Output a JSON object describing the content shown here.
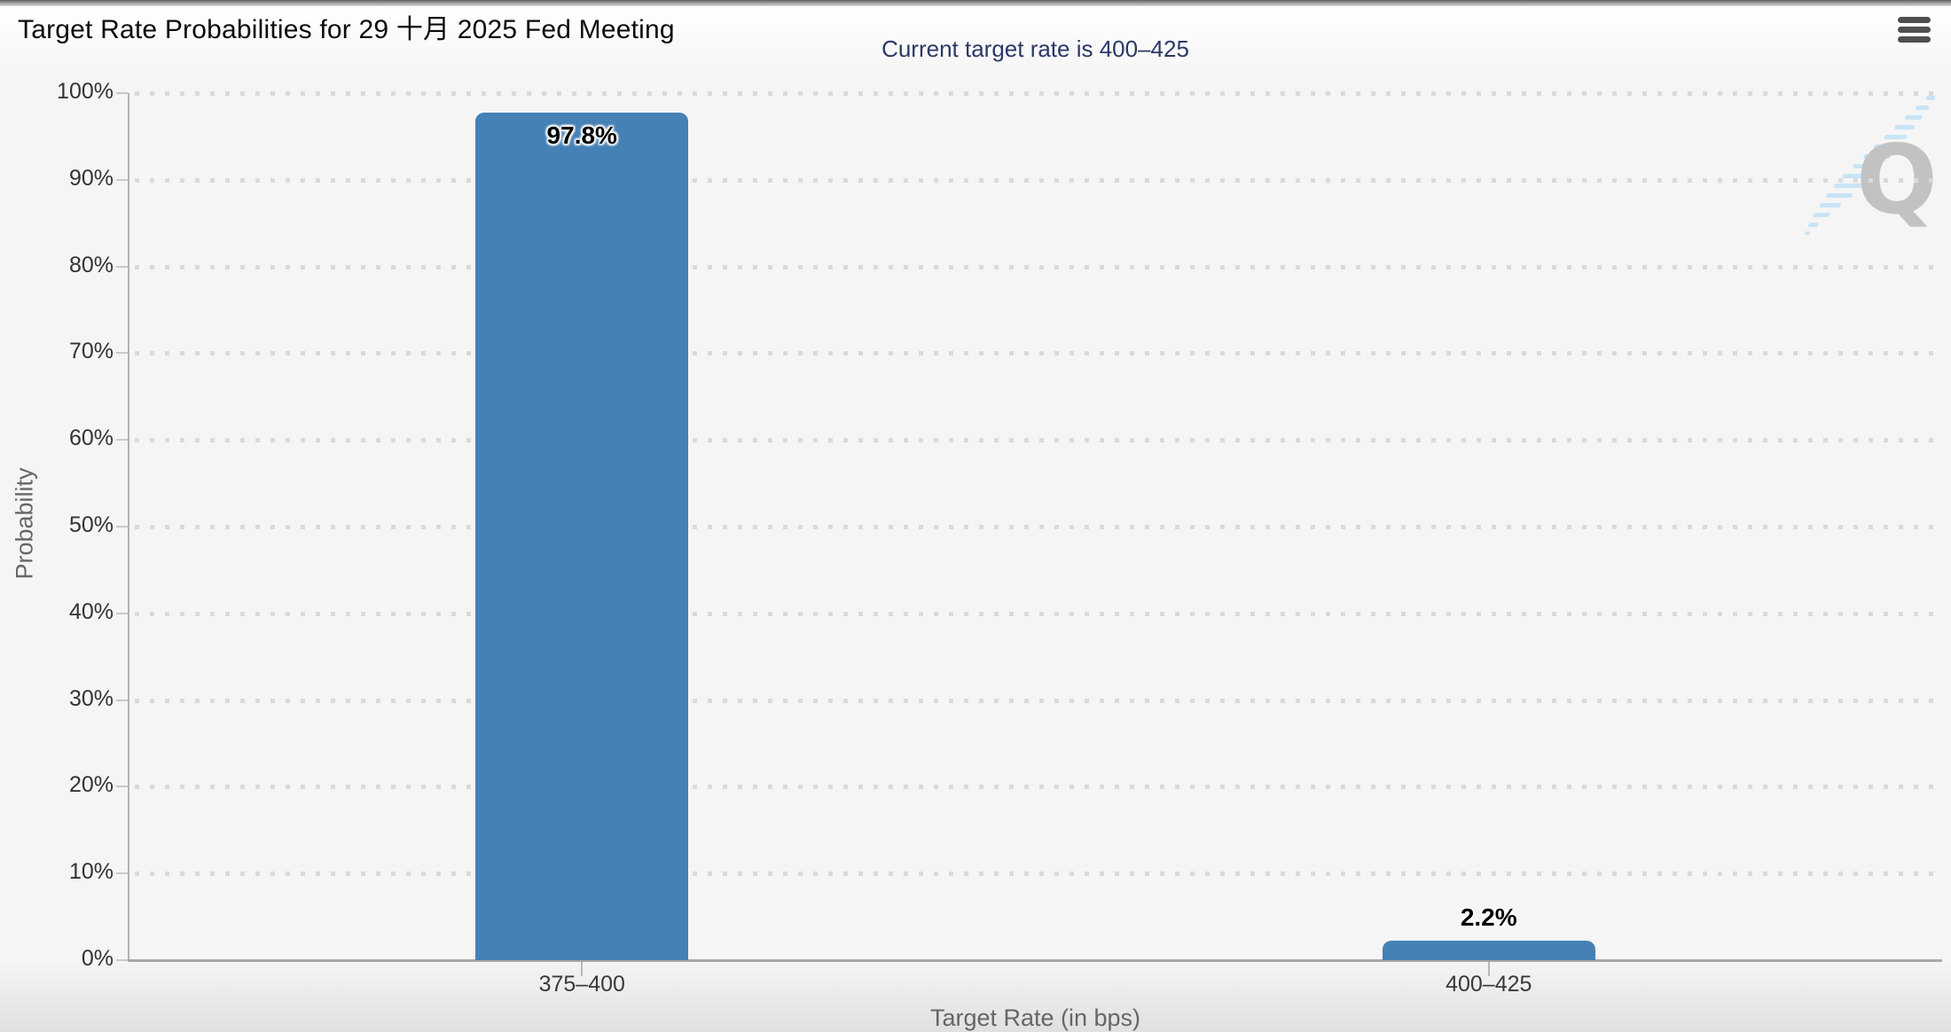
{
  "menu": {
    "icon": "hamburger-icon"
  },
  "chart_data": {
    "type": "bar",
    "title": "Target Rate Probabilities for 29 十月 2025 Fed Meeting",
    "subtitle": "Current target rate is 400–425",
    "categories": [
      "375–400",
      "400–425"
    ],
    "values": [
      97.8,
      2.2
    ],
    "value_labels": [
      "97.8%",
      "2.2%"
    ],
    "xlabel": "Target Rate (in bps)",
    "ylabel": "Probability",
    "ylim": [
      0,
      100
    ],
    "yticks": [
      {
        "value": 0,
        "label": "0%"
      },
      {
        "value": 10,
        "label": "10%"
      },
      {
        "value": 20,
        "label": "20%"
      },
      {
        "value": 30,
        "label": "30%"
      },
      {
        "value": 40,
        "label": "40%"
      },
      {
        "value": 50,
        "label": "50%"
      },
      {
        "value": 60,
        "label": "60%"
      },
      {
        "value": 70,
        "label": "70%"
      },
      {
        "value": 80,
        "label": "80%"
      },
      {
        "value": 90,
        "label": "90%"
      },
      {
        "value": 100,
        "label": "100%"
      }
    ],
    "grid": "horizontal-dotted",
    "legend": "none",
    "bar_color": "#4581B5",
    "subtitle_color": "#2B3966",
    "watermark_letter": "Q"
  }
}
